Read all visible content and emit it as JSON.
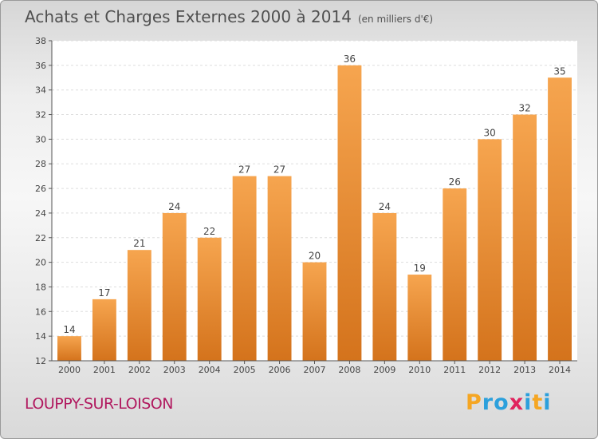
{
  "header": {
    "title": "Achats et Charges Externes 2000 à 2014",
    "subtitle": "(en milliers d'€)"
  },
  "footer": {
    "commune": "LOUPPY-SUR-LOISON",
    "logo_letters": [
      "P",
      "r",
      "o",
      "x",
      "i",
      "t",
      "i"
    ],
    "logo_colors": [
      "#f5a623",
      "#2ca0dc",
      "#2ca0dc",
      "#e0245e",
      "#2ca0dc",
      "#f5a623",
      "#2ca0dc"
    ]
  },
  "chart_data": {
    "type": "bar",
    "title": "Achats et Charges Externes 2000 à 2014",
    "categories": [
      "2000",
      "2001",
      "2002",
      "2003",
      "2004",
      "2005",
      "2006",
      "2007",
      "2008",
      "2009",
      "2010",
      "2011",
      "2012",
      "2013",
      "2014"
    ],
    "values": [
      14,
      17,
      21,
      24,
      22,
      27,
      27,
      20,
      36,
      24,
      19,
      26,
      30,
      32,
      35
    ],
    "xlabel": "",
    "ylabel": "",
    "ylim": [
      12,
      38
    ],
    "yticks": [
      12,
      14,
      16,
      18,
      20,
      22,
      24,
      26,
      28,
      30,
      32,
      34,
      36,
      38
    ],
    "grid": true,
    "bar_color_top": "#f6a54f",
    "bar_color_bottom": "#d4731c"
  }
}
